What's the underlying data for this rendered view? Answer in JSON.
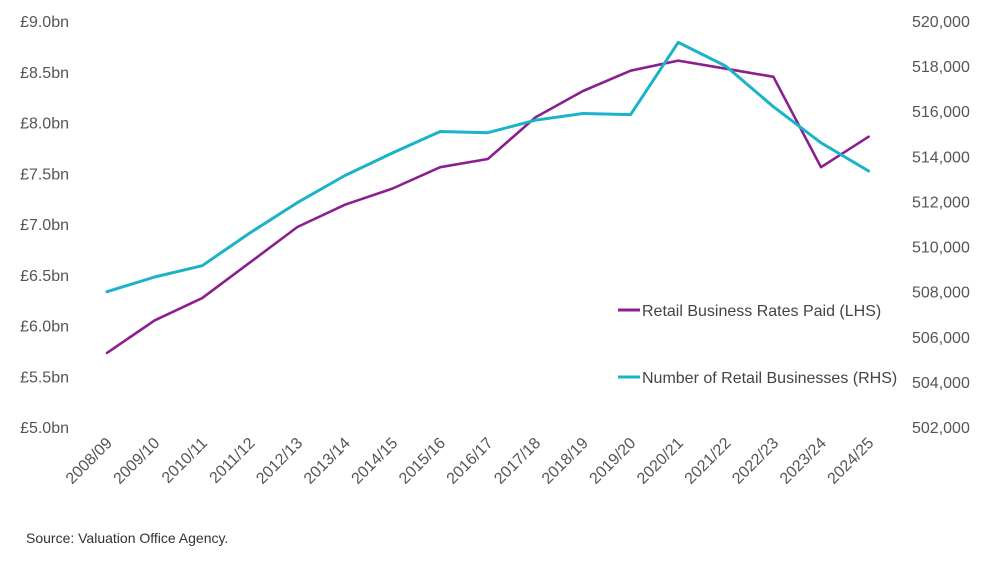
{
  "chart_data": {
    "type": "line",
    "x": [
      "2008/09",
      "2009/10",
      "2010/11",
      "2011/12",
      "2012/13",
      "2013/14",
      "2014/15",
      "2015/16",
      "2016/17",
      "2017/18",
      "2018/19",
      "2019/20",
      "2020/21",
      "2021/22",
      "2022/23",
      "2023/24",
      "2024/25"
    ],
    "left_axis": {
      "ylim": [
        5.0,
        9.0
      ],
      "ticks": [
        "£5.0bn",
        "£5.5bn",
        "£6.0bn",
        "£6.5bn",
        "£7.0bn",
        "£7.5bn",
        "£8.0bn",
        "£8.5bn",
        "£9.0bn"
      ]
    },
    "right_axis": {
      "ylim": [
        502000,
        520000
      ],
      "ticks": [
        "502,000",
        "504,000",
        "506,000",
        "508,000",
        "510,000",
        "512,000",
        "514,000",
        "516,000",
        "518,000",
        "520,000"
      ]
    },
    "series": [
      {
        "name": "Retail Business Rates Paid (LHS)",
        "axis": "left",
        "color": "#8B1F8F",
        "values": [
          5.73,
          6.05,
          6.27,
          6.62,
          6.97,
          7.19,
          7.35,
          7.56,
          7.64,
          8.05,
          8.31,
          8.51,
          8.61,
          8.53,
          8.45,
          7.56,
          7.86
        ]
      },
      {
        "name": "Number of Retail Businesses (RHS)",
        "axis": "right",
        "color": "#1BB3C9",
        "values": [
          508000,
          508650,
          509150,
          510600,
          511950,
          513150,
          514150,
          515100,
          515050,
          515600,
          515900,
          515850,
          519050,
          518000,
          516200,
          514600,
          513350
        ]
      }
    ],
    "legend_position": "right",
    "grid": false
  },
  "source": "Source: Valuation Office Agency."
}
